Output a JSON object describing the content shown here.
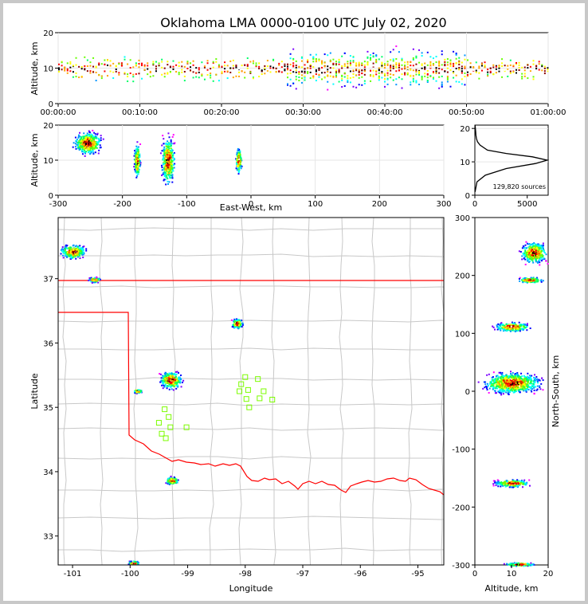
{
  "title": "Oklahoma LMA 0000-0100 UTC July 02, 2020",
  "colors": {
    "state_border": "#ff0000",
    "county_lines": "#c8c8c8",
    "stations": "#7cfc00",
    "frame": "#c8c8c8"
  },
  "colorscale": [
    "#ff00ff",
    "#7b00ff",
    "#0000ff",
    "#0096ff",
    "#00ffff",
    "#00ff66",
    "#66ff00",
    "#ffff00",
    "#ffa500",
    "#ff0000",
    "#8b0000",
    "#000000",
    "#ffffff"
  ],
  "chart_data": [
    {
      "id": "time-height",
      "type": "heatmap",
      "xlabel": "",
      "ylabel": "Altitude, km",
      "xlim": [
        "00:00:00",
        "01:00:00"
      ],
      "ylim": [
        0,
        20
      ],
      "xticks": [
        "00:00:00",
        "00:10:00",
        "00:20:00",
        "00:30:00",
        "00:40:00",
        "00:50:00",
        "01:00:00"
      ],
      "yticks": [
        0,
        10,
        20
      ],
      "grid": true,
      "blobs": [
        {
          "x0": 0,
          "x1": 60,
          "y0": 4,
          "y1": 16,
          "core": 10
        },
        {
          "x0": 30,
          "x1": 50,
          "y0": 3,
          "y1": 18,
          "core": 10
        }
      ]
    },
    {
      "id": "east-west-altitude",
      "type": "heatmap",
      "xlabel": "East-West, km",
      "ylabel": "Altitude, km",
      "xlim": [
        -300,
        300
      ],
      "ylim": [
        0,
        20
      ],
      "xticks": [
        -300,
        -200,
        -100,
        0,
        100,
        200,
        300
      ],
      "yticks": [
        0,
        10,
        20
      ],
      "grid": true,
      "blobs": [
        {
          "x": -255,
          "y": 15,
          "w": 55,
          "h": 8
        },
        {
          "x": -178,
          "y": 10,
          "w": 12,
          "h": 12
        },
        {
          "x": -130,
          "y": 10,
          "w": 26,
          "h": 17
        },
        {
          "x": -20,
          "y": 10,
          "w": 12,
          "h": 9
        }
      ]
    },
    {
      "id": "altitude-histogram",
      "type": "line",
      "xlim": [
        0,
        7000
      ],
      "ylim": [
        0,
        21
      ],
      "xticks": [
        0,
        5000
      ],
      "yticks": [
        0,
        10,
        20
      ],
      "annotation": "129,820 sources",
      "x": [
        20,
        200,
        1000,
        3000,
        5800,
        6900,
        5500,
        3000,
        1200,
        500,
        250,
        150,
        100,
        80,
        50,
        20
      ],
      "y": [
        1,
        4,
        6,
        8,
        9.5,
        10.5,
        11.5,
        12.5,
        13.5,
        15,
        16,
        17,
        18,
        19,
        20,
        21
      ]
    },
    {
      "id": "plan-view",
      "type": "heatmap",
      "xlabel": "Longitude",
      "ylabel": "Latitude",
      "xlim": [
        -101.25,
        -94.55
      ],
      "ylim": [
        32.55,
        37.95
      ],
      "xticks": [
        -101,
        -100,
        -99,
        -98,
        -97,
        -96,
        -95
      ],
      "yticks": [
        33,
        34,
        35,
        36,
        37
      ],
      "blobs": [
        {
          "lon": -101.0,
          "lat": 37.43,
          "w": 0.55,
          "h": 0.28
        },
        {
          "lon": -100.63,
          "lat": 36.99,
          "w": 0.25,
          "h": 0.1
        },
        {
          "lon": -98.15,
          "lat": 36.31,
          "w": 0.25,
          "h": 0.2
        },
        {
          "lon": -99.3,
          "lat": 35.43,
          "w": 0.48,
          "h": 0.35
        },
        {
          "lon": -99.88,
          "lat": 35.26,
          "w": 0.2,
          "h": 0.08
        },
        {
          "lon": -99.28,
          "lat": 33.87,
          "w": 0.28,
          "h": 0.15
        },
        {
          "lon": -99.95,
          "lat": 32.59,
          "w": 0.25,
          "h": 0.08
        }
      ],
      "stations": [
        [
          -98.0,
          35.47
        ],
        [
          -97.78,
          35.44
        ],
        [
          -98.07,
          35.36
        ],
        [
          -97.95,
          35.27
        ],
        [
          -98.1,
          35.25
        ],
        [
          -97.68,
          35.25
        ],
        [
          -97.98,
          35.13
        ],
        [
          -97.75,
          35.14
        ],
        [
          -97.53,
          35.12
        ],
        [
          -97.93,
          35.0
        ],
        [
          -99.4,
          34.97
        ],
        [
          -99.33,
          34.85
        ],
        [
          -99.5,
          34.76
        ],
        [
          -99.3,
          34.69
        ],
        [
          -99.02,
          34.69
        ],
        [
          -99.45,
          34.59
        ],
        [
          -99.38,
          34.52
        ]
      ]
    },
    {
      "id": "altitude-north-south",
      "type": "heatmap",
      "xlabel": "Altitude, km",
      "ylabel": "North-South, km",
      "xlim": [
        0,
        20
      ],
      "ylim": [
        -300,
        300
      ],
      "xticks": [
        0,
        10,
        20
      ],
      "yticks": [
        -300,
        -200,
        -100,
        0,
        100,
        200,
        300
      ],
      "blobs": [
        {
          "x": 16,
          "y": 240,
          "w": 9,
          "h": 45
        },
        {
          "x": 15,
          "y": 193,
          "w": 9,
          "h": 12
        },
        {
          "x": 10,
          "y": 112,
          "w": 12,
          "h": 20
        },
        {
          "x": 10,
          "y": 15,
          "w": 20,
          "h": 45
        },
        {
          "x": 10,
          "y": -158,
          "w": 12,
          "h": 16
        },
        {
          "x": 12,
          "y": -298,
          "w": 10,
          "h": 8
        }
      ]
    }
  ]
}
